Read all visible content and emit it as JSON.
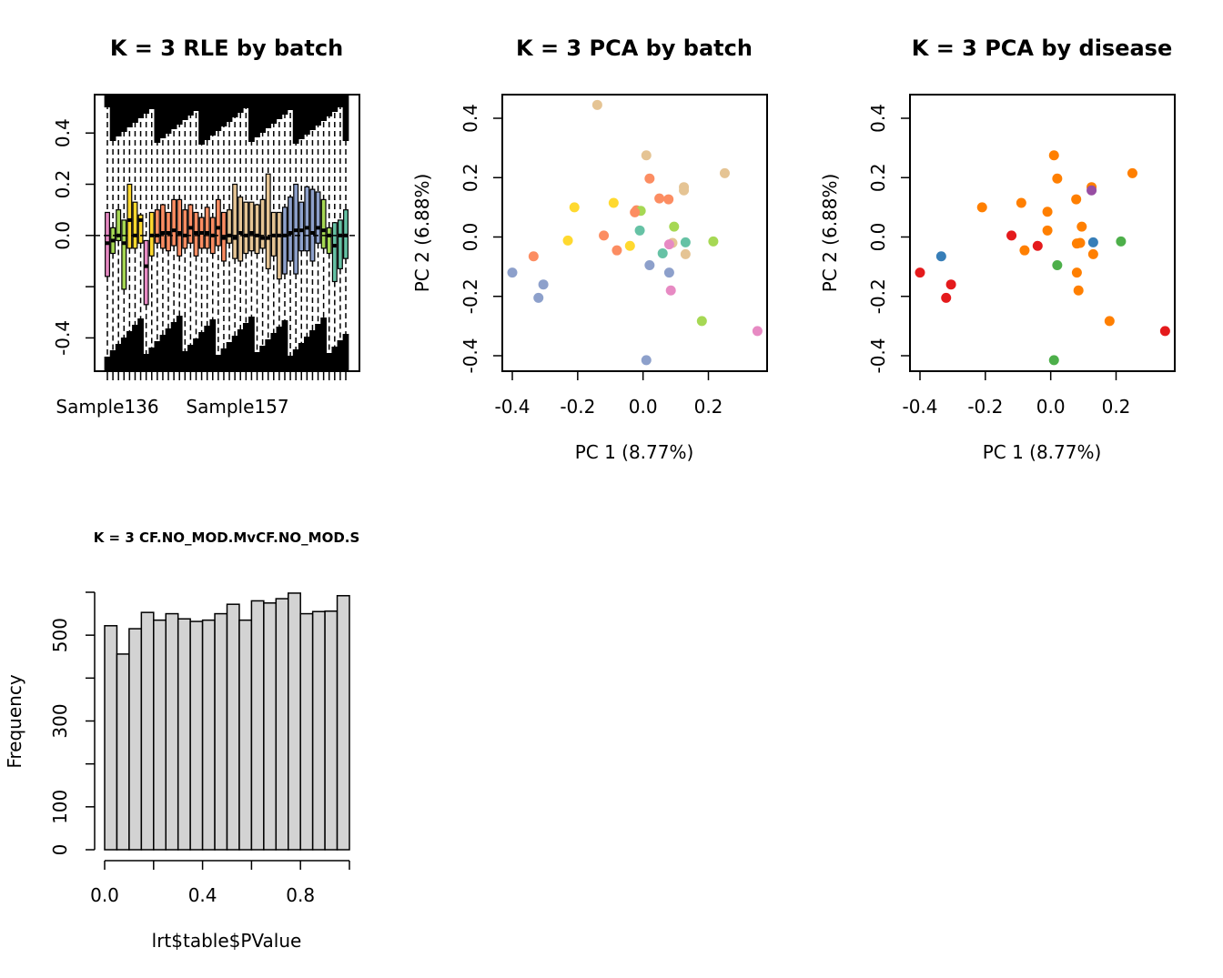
{
  "chart_data": [
    {
      "type": "box",
      "title": "K = 3 RLE by batch",
      "xlabel": "",
      "ylabel": "",
      "ylim": [
        -0.53,
        0.55
      ],
      "yticks": [
        -0.4,
        0.0,
        0.2,
        0.4
      ],
      "ytick_labels": [
        "-0.4",
        "0.0",
        "0.2",
        "0.4"
      ],
      "x_tick_labels_shown": [
        "Sample136",
        "Sample157"
      ],
      "boxes": [
        {
          "q1": -0.16,
          "median": -0.03,
          "q3": 0.09,
          "color": "#E78AC3"
        },
        {
          "q1": -0.07,
          "median": -0.02,
          "q3": 0.03,
          "color": "#A6D854"
        },
        {
          "q1": -0.02,
          "median": 0.0,
          "q3": 0.1,
          "color": "#A6D854"
        },
        {
          "q1": -0.21,
          "median": -0.03,
          "q3": 0.06,
          "color": "#A6D854"
        },
        {
          "q1": -0.05,
          "median": 0.06,
          "q3": 0.2,
          "color": "#FFD92F"
        },
        {
          "q1": -0.05,
          "median": 0.0,
          "q3": 0.13,
          "color": "#FFD92F"
        },
        {
          "q1": -0.03,
          "median": 0.06,
          "q3": 0.08,
          "color": "#FFD92F"
        },
        {
          "q1": -0.27,
          "median": -0.12,
          "q3": -0.02,
          "color": "#E78AC3"
        },
        {
          "q1": -0.08,
          "median": 0.0,
          "q3": 0.09,
          "color": "#FFD92F"
        },
        {
          "q1": -0.03,
          "median": 0.0,
          "q3": 0.1,
          "color": "#FC8D62"
        },
        {
          "q1": -0.05,
          "median": 0.01,
          "q3": 0.12,
          "color": "#FC8D62"
        },
        {
          "q1": -0.06,
          "median": 0.01,
          "q3": 0.09,
          "color": "#FC8D62"
        },
        {
          "q1": -0.04,
          "median": 0.02,
          "q3": 0.14,
          "color": "#FC8D62"
        },
        {
          "q1": -0.08,
          "median": 0.01,
          "q3": 0.14,
          "color": "#FC8D62"
        },
        {
          "q1": -0.05,
          "median": 0.0,
          "q3": 0.1,
          "color": "#FC8D62"
        },
        {
          "q1": -0.03,
          "median": 0.03,
          "q3": 0.12,
          "color": "#FC8D62"
        },
        {
          "q1": -0.08,
          "median": 0.01,
          "q3": 0.09,
          "color": "#FC8D62"
        },
        {
          "q1": -0.05,
          "median": 0.01,
          "q3": 0.07,
          "color": "#FC8D62"
        },
        {
          "q1": -0.05,
          "median": 0.01,
          "q3": 0.11,
          "color": "#FC8D62"
        },
        {
          "q1": -0.07,
          "median": 0.0,
          "q3": 0.07,
          "color": "#FC8D62"
        },
        {
          "q1": -0.04,
          "median": 0.03,
          "q3": 0.14,
          "color": "#FC8D62"
        },
        {
          "q1": -0.1,
          "median": -0.01,
          "q3": 0.09,
          "color": "#FC8D62"
        },
        {
          "q1": -0.03,
          "median": 0.0,
          "q3": 0.1,
          "color": "#E5C494"
        },
        {
          "q1": -0.09,
          "median": -0.01,
          "q3": 0.2,
          "color": "#E5C494"
        },
        {
          "q1": -0.1,
          "median": 0.01,
          "q3": 0.15,
          "color": "#E5C494"
        },
        {
          "q1": -0.07,
          "median": 0.0,
          "q3": 0.13,
          "color": "#E5C494"
        },
        {
          "q1": -0.06,
          "median": 0.01,
          "q3": 0.13,
          "color": "#E5C494"
        },
        {
          "q1": -0.07,
          "median": 0.0,
          "q3": 0.12,
          "color": "#E5C494"
        },
        {
          "q1": -0.05,
          "median": -0.01,
          "q3": 0.14,
          "color": "#E5C494"
        },
        {
          "q1": -0.13,
          "median": -0.01,
          "q3": 0.24,
          "color": "#E5C494"
        },
        {
          "q1": -0.08,
          "median": 0.0,
          "q3": 0.09,
          "color": "#E5C494"
        },
        {
          "q1": -0.17,
          "median": 0.0,
          "q3": 0.09,
          "color": "#E5C494"
        },
        {
          "q1": -0.15,
          "median": 0.0,
          "q3": 0.11,
          "color": "#8DA0CB"
        },
        {
          "q1": -0.1,
          "median": 0.01,
          "q3": 0.15,
          "color": "#8DA0CB"
        },
        {
          "q1": -0.15,
          "median": 0.02,
          "q3": 0.2,
          "color": "#8DA0CB"
        },
        {
          "q1": -0.06,
          "median": 0.02,
          "q3": 0.13,
          "color": "#8DA0CB"
        },
        {
          "q1": -0.06,
          "median": 0.03,
          "q3": 0.19,
          "color": "#8DA0CB"
        },
        {
          "q1": -0.1,
          "median": 0.01,
          "q3": 0.18,
          "color": "#8DA0CB"
        },
        {
          "q1": -0.03,
          "median": 0.03,
          "q3": 0.17,
          "color": "#8DA0CB"
        },
        {
          "q1": -0.05,
          "median": 0.02,
          "q3": 0.14,
          "color": "#A6D854"
        },
        {
          "q1": -0.07,
          "median": 0.0,
          "q3": 0.03,
          "color": "#A6D854"
        },
        {
          "q1": -0.18,
          "median": -0.04,
          "q3": 0.05,
          "color": "#66C2A5"
        },
        {
          "q1": -0.13,
          "median": 0.0,
          "q3": 0.06,
          "color": "#66C2A5"
        },
        {
          "q1": -0.09,
          "median": 0.0,
          "q3": 0.1,
          "color": "#66C2A5"
        }
      ]
    },
    {
      "type": "scatter",
      "title": "K = 3 PCA by batch",
      "xlabel": "PC 1 (8.77%)",
      "ylabel": "PC 2 (6.88%)",
      "xlim": [
        -0.43,
        0.38
      ],
      "ylim": [
        -0.45,
        0.48
      ],
      "xticks": [
        -0.4,
        -0.2,
        0.0,
        0.2
      ],
      "xtick_labels": [
        "-0.4",
        "-0.2",
        "0.0",
        "0.2"
      ],
      "yticks": [
        -0.4,
        -0.2,
        0.0,
        0.2,
        0.4
      ],
      "ytick_labels": [
        "-0.4",
        "-0.2",
        "0.0",
        "0.2",
        "0.4"
      ],
      "points": [
        {
          "x": -0.14,
          "y": 0.445,
          "color": "#E5C494"
        },
        {
          "x": 0.01,
          "y": 0.275,
          "color": "#E5C494"
        },
        {
          "x": 0.25,
          "y": 0.215,
          "color": "#E5C494"
        },
        {
          "x": 0.02,
          "y": 0.197,
          "color": "#FC8D62"
        },
        {
          "x": 0.125,
          "y": 0.168,
          "color": "#E5C494"
        },
        {
          "x": 0.125,
          "y": 0.157,
          "color": "#E5C494"
        },
        {
          "x": 0.05,
          "y": 0.13,
          "color": "#FC8D62"
        },
        {
          "x": 0.078,
          "y": 0.127,
          "color": "#FC8D62"
        },
        {
          "x": -0.09,
          "y": 0.115,
          "color": "#FFD92F"
        },
        {
          "x": -0.21,
          "y": 0.1,
          "color": "#FFD92F"
        },
        {
          "x": -0.02,
          "y": 0.09,
          "color": "#FC8D62"
        },
        {
          "x": -0.007,
          "y": 0.088,
          "color": "#A6D854"
        },
        {
          "x": -0.025,
          "y": 0.083,
          "color": "#FC8D62"
        },
        {
          "x": 0.095,
          "y": 0.035,
          "color": "#A6D854"
        },
        {
          "x": -0.01,
          "y": 0.022,
          "color": "#66C2A5"
        },
        {
          "x": -0.12,
          "y": 0.005,
          "color": "#FC8D62"
        },
        {
          "x": -0.23,
          "y": -0.012,
          "color": "#FFD92F"
        },
        {
          "x": 0.13,
          "y": -0.018,
          "color": "#66C2A5"
        },
        {
          "x": 0.215,
          "y": -0.015,
          "color": "#A6D854"
        },
        {
          "x": 0.09,
          "y": -0.02,
          "color": "#E5C494"
        },
        {
          "x": 0.08,
          "y": -0.025,
          "color": "#E78AC3"
        },
        {
          "x": -0.04,
          "y": -0.03,
          "color": "#FFD92F"
        },
        {
          "x": -0.08,
          "y": -0.045,
          "color": "#FC8D62"
        },
        {
          "x": 0.06,
          "y": -0.055,
          "color": "#66C2A5"
        },
        {
          "x": 0.13,
          "y": -0.058,
          "color": "#E5C494"
        },
        {
          "x": -0.335,
          "y": -0.065,
          "color": "#FC8D62"
        },
        {
          "x": 0.02,
          "y": -0.095,
          "color": "#8DA0CB"
        },
        {
          "x": -0.4,
          "y": -0.12,
          "color": "#8DA0CB"
        },
        {
          "x": 0.08,
          "y": -0.12,
          "color": "#8DA0CB"
        },
        {
          "x": -0.305,
          "y": -0.16,
          "color": "#8DA0CB"
        },
        {
          "x": 0.085,
          "y": -0.18,
          "color": "#E78AC3"
        },
        {
          "x": -0.32,
          "y": -0.205,
          "color": "#8DA0CB"
        },
        {
          "x": 0.18,
          "y": -0.283,
          "color": "#A6D854"
        },
        {
          "x": 0.35,
          "y": -0.317,
          "color": "#E78AC3"
        },
        {
          "x": 0.01,
          "y": -0.415,
          "color": "#8DA0CB"
        }
      ]
    },
    {
      "type": "scatter",
      "title": "K = 3 PCA by disease",
      "xlabel": "PC 1 (8.77%)",
      "ylabel": "PC 2 (6.88%)",
      "xlim": [
        -0.43,
        0.38
      ],
      "ylim": [
        -0.45,
        0.48
      ],
      "xticks": [
        -0.4,
        -0.2,
        0.0,
        0.2
      ],
      "xtick_labels": [
        "-0.4",
        "-0.2",
        "0.0",
        "0.2"
      ],
      "yticks": [
        -0.4,
        -0.2,
        0.0,
        0.2,
        0.4
      ],
      "ytick_labels": [
        "-0.4",
        "-0.2",
        "0.0",
        "0.2",
        "0.4"
      ],
      "points": [
        {
          "x": 0.01,
          "y": 0.275,
          "color": "#FF7F00"
        },
        {
          "x": 0.25,
          "y": 0.215,
          "color": "#FF7F00"
        },
        {
          "x": 0.02,
          "y": 0.197,
          "color": "#FF7F00"
        },
        {
          "x": 0.125,
          "y": 0.168,
          "color": "#FF7F00"
        },
        {
          "x": 0.125,
          "y": 0.157,
          "color": "#984EA3"
        },
        {
          "x": 0.078,
          "y": 0.127,
          "color": "#FF7F00"
        },
        {
          "x": -0.09,
          "y": 0.115,
          "color": "#FF7F00"
        },
        {
          "x": -0.21,
          "y": 0.1,
          "color": "#FF7F00"
        },
        {
          "x": -0.01,
          "y": 0.085,
          "color": "#FF7F00"
        },
        {
          "x": 0.095,
          "y": 0.035,
          "color": "#FF7F00"
        },
        {
          "x": -0.01,
          "y": 0.022,
          "color": "#FF7F00"
        },
        {
          "x": -0.12,
          "y": 0.005,
          "color": "#E41A1C"
        },
        {
          "x": 0.13,
          "y": -0.018,
          "color": "#377EB8"
        },
        {
          "x": 0.215,
          "y": -0.015,
          "color": "#4DAF4A"
        },
        {
          "x": 0.09,
          "y": -0.02,
          "color": "#FF7F00"
        },
        {
          "x": 0.08,
          "y": -0.022,
          "color": "#FF7F00"
        },
        {
          "x": -0.04,
          "y": -0.03,
          "color": "#E41A1C"
        },
        {
          "x": -0.08,
          "y": -0.045,
          "color": "#FF7F00"
        },
        {
          "x": 0.13,
          "y": -0.058,
          "color": "#FF7F00"
        },
        {
          "x": -0.335,
          "y": -0.065,
          "color": "#377EB8"
        },
        {
          "x": 0.02,
          "y": -0.095,
          "color": "#4DAF4A"
        },
        {
          "x": -0.4,
          "y": -0.12,
          "color": "#E41A1C"
        },
        {
          "x": 0.08,
          "y": -0.12,
          "color": "#FF7F00"
        },
        {
          "x": -0.305,
          "y": -0.16,
          "color": "#E41A1C"
        },
        {
          "x": 0.085,
          "y": -0.18,
          "color": "#FF7F00"
        },
        {
          "x": -0.32,
          "y": -0.205,
          "color": "#E41A1C"
        },
        {
          "x": 0.18,
          "y": -0.283,
          "color": "#FF7F00"
        },
        {
          "x": 0.35,
          "y": -0.317,
          "color": "#E41A1C"
        },
        {
          "x": 0.01,
          "y": -0.415,
          "color": "#4DAF4A"
        }
      ]
    },
    {
      "type": "bar",
      "subtype": "histogram",
      "title": "K = 3 CF.NO_MOD.MvCF.NO_MOD.S",
      "xlabel": "lrt$table$PValue",
      "ylabel": "Frequency",
      "xlim": [
        -0.05,
        1.0
      ],
      "ylim": [
        0,
        600
      ],
      "xticks": [
        0.0,
        0.2,
        0.4,
        0.6,
        0.8,
        1.0
      ],
      "xtick_labels": [
        "0.0",
        "",
        "0.4",
        "",
        "0.8",
        ""
      ],
      "yticks": [
        0,
        100,
        200,
        300,
        400,
        500,
        600
      ],
      "ytick_labels": [
        "0",
        "100",
        "",
        "300",
        "",
        "500",
        ""
      ],
      "bin_edges": [
        0.0,
        0.05,
        0.1,
        0.15,
        0.2,
        0.25,
        0.3,
        0.35,
        0.4,
        0.45,
        0.5,
        0.55,
        0.6,
        0.65,
        0.7,
        0.75,
        0.8,
        0.85,
        0.9,
        0.95,
        1.0
      ],
      "values": [
        522,
        456,
        515,
        553,
        535,
        550,
        538,
        532,
        535,
        550,
        572,
        535,
        580,
        575,
        585,
        598,
        550,
        555,
        556,
        592
      ],
      "bar_color": "#D3D3D3"
    }
  ]
}
